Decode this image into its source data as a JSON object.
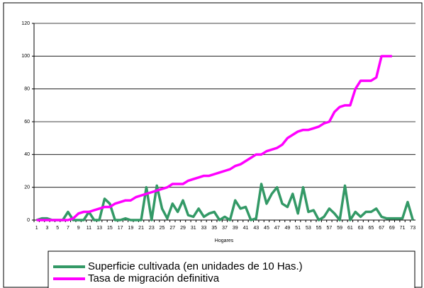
{
  "chart_data": {
    "type": "line",
    "xlabel": "Hogares",
    "categories": [
      1,
      null,
      3,
      null,
      5,
      null,
      7,
      null,
      9,
      null,
      11,
      null,
      13,
      null,
      15,
      null,
      17,
      null,
      19,
      null,
      21,
      null,
      23,
      null,
      25,
      null,
      27,
      null,
      29,
      null,
      31,
      null,
      33,
      null,
      35,
      null,
      37,
      null,
      39,
      null,
      41,
      null,
      43,
      null,
      45,
      null,
      47,
      null,
      49,
      null,
      51,
      null,
      53,
      null,
      55,
      null,
      57,
      null,
      59,
      null,
      61,
      null,
      63,
      null,
      65,
      null,
      67,
      null,
      69,
      null,
      71,
      null,
      73
    ],
    "series": [
      {
        "name": "Superficie cultivada (en unidades de  10 Has.)",
        "color": "#339966",
        "values": [
          0,
          1,
          1,
          0,
          0,
          0,
          5,
          0,
          0,
          0,
          5,
          0,
          0,
          13,
          10,
          0,
          0,
          1,
          0,
          0,
          0,
          20,
          0,
          21,
          7,
          1,
          10,
          5,
          12,
          3,
          2,
          7,
          2,
          4,
          5,
          0,
          2,
          0,
          12,
          7,
          8,
          0,
          1,
          22,
          10,
          16,
          20,
          10,
          8,
          16,
          4,
          20,
          5,
          6,
          0,
          2,
          7,
          4,
          0,
          21,
          0,
          5,
          2,
          5,
          5,
          7,
          2,
          1,
          1,
          1,
          1,
          11,
          0
        ]
      },
      {
        "name": "Tasa de migración definitiva",
        "color": "#ff00ff",
        "values": [
          0,
          0,
          0,
          0,
          0,
          0,
          0,
          1,
          4,
          5,
          5,
          6,
          7,
          8,
          8,
          10,
          11,
          12,
          12,
          14,
          15,
          16,
          17,
          18,
          19,
          20,
          22,
          22,
          22,
          24,
          25,
          26,
          27,
          27,
          28,
          29,
          30,
          31,
          33,
          34,
          36,
          38,
          40,
          40,
          42,
          43,
          44,
          46,
          50,
          52,
          54,
          55,
          55,
          56,
          57,
          59,
          60,
          66,
          69,
          70,
          70,
          80,
          85,
          85,
          85,
          87,
          100,
          100,
          100,
          null,
          null,
          null,
          null
        ]
      }
    ],
    "ylim": [
      0,
      120
    ],
    "yticks": [
      0,
      20,
      40,
      60,
      80,
      100,
      120
    ],
    "grid": true
  }
}
